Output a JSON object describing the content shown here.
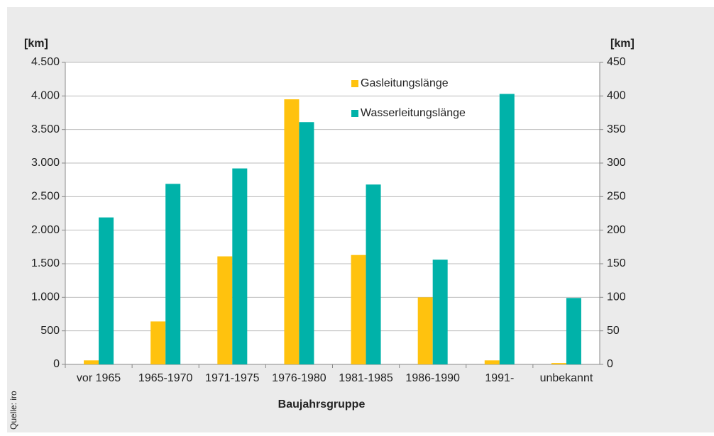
{
  "chart_data": {
    "type": "bar",
    "y_label": "[km]",
    "y2_label": "[km]",
    "x_label": "Baujahrsgruppe",
    "source": "Quelle: iro",
    "categories": [
      "vor 1965",
      "1965-1970",
      "1971-1975",
      "1976-1980",
      "1981-1985",
      "1986-1990",
      "1991-",
      "unbekannt"
    ],
    "series": [
      {
        "name": "Gasleitungslänge",
        "color": "#ffc20e",
        "axis": "y2",
        "values": [
          6,
          64,
          161,
          395,
          163,
          100,
          6,
          2
        ]
      },
      {
        "name": "Wasserleitungslänge",
        "color": "#00b2a9",
        "values": [
          2190,
          2690,
          2920,
          3610,
          2680,
          1560,
          4030,
          990
        ]
      }
    ],
    "ylim": [
      0,
      4500
    ],
    "yticks": [
      0,
      500,
      {
        "value": 1000,
        "label": "1.000"
      },
      {
        "value": 1500,
        "label": "1.500"
      },
      {
        "value": 2000,
        "label": "2.000"
      },
      {
        "value": 2500,
        "label": "2.500"
      },
      {
        "value": 3000,
        "label": "3.000"
      },
      {
        "value": 3500,
        "label": "3.500"
      },
      {
        "value": 4000,
        "label": "4.000"
      },
      {
        "value": 4500,
        "label": "4.500"
      }
    ],
    "y2lim": [
      0,
      450
    ],
    "y2ticks": [
      0,
      50,
      100,
      150,
      200,
      250,
      300,
      350,
      400,
      450
    ],
    "grid": true
  }
}
